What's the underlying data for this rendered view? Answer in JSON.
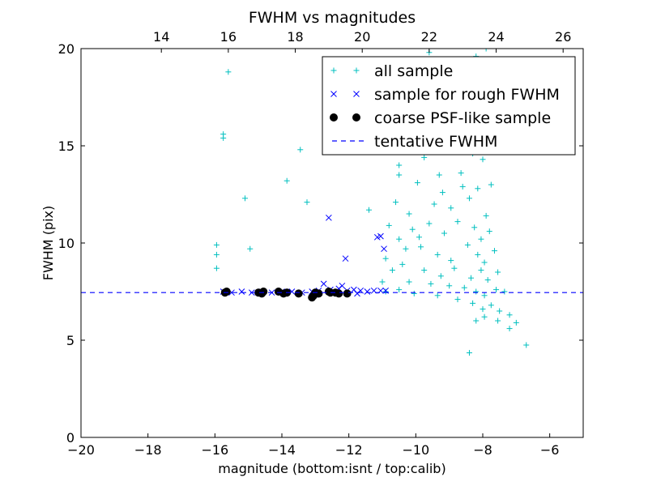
{
  "chart_data": {
    "type": "scatter",
    "title": "FWHM vs magnitudes",
    "xlabel": "magnitude (bottom:isnt / top:calib)",
    "ylabel": "FWHM (pix)",
    "xlim": [
      -20,
      -5
    ],
    "ylim": [
      0,
      20
    ],
    "xticks": [
      "−20",
      "−18",
      "−16",
      "−14",
      "−12",
      "−10",
      "−8",
      "−6"
    ],
    "xtick_values": [
      -20,
      -18,
      -16,
      -14,
      -12,
      -10,
      -8,
      -6
    ],
    "yticks": [
      "0",
      "5",
      "10",
      "15",
      "20"
    ],
    "ytick_values": [
      0,
      5,
      10,
      15,
      20
    ],
    "top_axis": {
      "offset": 31.6,
      "ticks": [
        "14",
        "16",
        "18",
        "20",
        "22",
        "24",
        "26"
      ],
      "tick_values": [
        14,
        16,
        18,
        20,
        22,
        24,
        26
      ]
    },
    "grid": false,
    "legend_position": "upper-right",
    "series": [
      {
        "name": "all sample",
        "marker": "+",
        "color": "#00bfbf",
        "points": [
          [
            -15.6,
            18.8
          ],
          [
            -15.75,
            15.6
          ],
          [
            -15.75,
            15.4
          ],
          [
            -15.1,
            12.3
          ],
          [
            -15.95,
            9.9
          ],
          [
            -15.95,
            9.4
          ],
          [
            -15.95,
            8.7
          ],
          [
            -14.95,
            9.7
          ],
          [
            -13.85,
            13.2
          ],
          [
            -13.45,
            14.8
          ],
          [
            -13.25,
            12.1
          ],
          [
            -11.4,
            11.7
          ],
          [
            -10.5,
            14.0
          ],
          [
            -10.5,
            13.5
          ],
          [
            -10.6,
            12.1
          ],
          [
            -10.2,
            11.5
          ],
          [
            -10.8,
            10.9
          ],
          [
            -10.5,
            10.2
          ],
          [
            -10.9,
            9.2
          ],
          [
            -10.3,
            9.7
          ],
          [
            -9.6,
            19.8
          ],
          [
            -9.3,
            19.3
          ],
          [
            -8.2,
            19.6
          ],
          [
            -7.9,
            20.0
          ],
          [
            -9.05,
            18.8
          ],
          [
            -9.3,
            17.8
          ],
          [
            -8.45,
            18.4
          ],
          [
            -8.05,
            17.9
          ],
          [
            -8.85,
            17.1
          ],
          [
            -8.1,
            16.5
          ],
          [
            -9.55,
            16.2
          ],
          [
            -8.55,
            15.2
          ],
          [
            -7.85,
            15.5
          ],
          [
            -9.95,
            15.0
          ],
          [
            -9.75,
            14.4
          ],
          [
            -8.0,
            14.3
          ],
          [
            -9.3,
            13.5
          ],
          [
            -8.65,
            13.6
          ],
          [
            -7.75,
            13.0
          ],
          [
            -9.95,
            13.1
          ],
          [
            -9.2,
            12.6
          ],
          [
            -9.45,
            12.0
          ],
          [
            -8.95,
            11.8
          ],
          [
            -8.4,
            12.3
          ],
          [
            -8.15,
            12.8
          ],
          [
            -7.9,
            11.4
          ],
          [
            -9.6,
            11.0
          ],
          [
            -10.1,
            10.7
          ],
          [
            -9.15,
            10.5
          ],
          [
            -8.75,
            11.1
          ],
          [
            -8.25,
            10.8
          ],
          [
            -8.05,
            10.2
          ],
          [
            -7.8,
            10.6
          ],
          [
            -9.85,
            9.8
          ],
          [
            -9.35,
            9.4
          ],
          [
            -8.95,
            9.1
          ],
          [
            -8.45,
            9.9
          ],
          [
            -8.15,
            9.4
          ],
          [
            -7.95,
            9.0
          ],
          [
            -7.65,
            9.6
          ],
          [
            -9.75,
            8.6
          ],
          [
            -9.25,
            8.3
          ],
          [
            -8.85,
            8.7
          ],
          [
            -8.35,
            8.2
          ],
          [
            -8.05,
            8.6
          ],
          [
            -7.85,
            8.1
          ],
          [
            -7.55,
            8.5
          ],
          [
            -10.2,
            8.0
          ],
          [
            -9.55,
            7.9
          ],
          [
            -9.0,
            7.8
          ],
          [
            -8.55,
            7.7
          ],
          [
            -8.2,
            7.5
          ],
          [
            -7.95,
            7.3
          ],
          [
            -7.6,
            7.6
          ],
          [
            -7.35,
            7.5
          ],
          [
            -10.5,
            7.6
          ],
          [
            -10.9,
            7.5
          ],
          [
            -10.05,
            7.4
          ],
          [
            -9.35,
            7.3
          ],
          [
            -8.75,
            7.1
          ],
          [
            -8.3,
            6.9
          ],
          [
            -8.0,
            6.6
          ],
          [
            -7.75,
            6.8
          ],
          [
            -7.5,
            6.5
          ],
          [
            -7.95,
            6.2
          ],
          [
            -8.2,
            6.0
          ],
          [
            -7.55,
            6.0
          ],
          [
            -7.2,
            6.3
          ],
          [
            -7.2,
            5.6
          ],
          [
            -7.0,
            5.9
          ],
          [
            -8.4,
            4.35
          ],
          [
            -6.7,
            4.75
          ],
          [
            -11.0,
            8.0
          ],
          [
            -10.7,
            8.6
          ],
          [
            -10.4,
            8.9
          ],
          [
            -9.9,
            10.3
          ],
          [
            -8.6,
            12.9
          ],
          [
            -8.3,
            14.6
          ],
          [
            -8.7,
            16.0
          ],
          [
            -7.85,
            16.8
          ]
        ]
      },
      {
        "name": "sample for rough FWHM",
        "marker": "x",
        "color": "#0000ff",
        "points": [
          [
            -15.75,
            7.5
          ],
          [
            -15.5,
            7.45
          ],
          [
            -15.2,
            7.5
          ],
          [
            -14.9,
            7.45
          ],
          [
            -14.6,
            7.5
          ],
          [
            -14.3,
            7.45
          ],
          [
            -14.0,
            7.5
          ],
          [
            -13.7,
            7.5
          ],
          [
            -13.4,
            7.45
          ],
          [
            -13.1,
            7.5
          ],
          [
            -12.9,
            7.55
          ],
          [
            -12.75,
            7.9
          ],
          [
            -12.55,
            7.6
          ],
          [
            -12.3,
            7.65
          ],
          [
            -12.2,
            7.8
          ],
          [
            -12.05,
            7.55
          ],
          [
            -11.85,
            7.6
          ],
          [
            -11.65,
            7.55
          ],
          [
            -11.45,
            7.5
          ],
          [
            -11.25,
            7.55
          ],
          [
            -11.05,
            7.55
          ],
          [
            -10.9,
            7.55
          ],
          [
            -12.6,
            11.3
          ],
          [
            -12.1,
            9.2
          ],
          [
            -11.15,
            10.3
          ],
          [
            -11.05,
            10.35
          ],
          [
            -10.95,
            9.7
          ],
          [
            -13.0,
            7.35
          ],
          [
            -12.45,
            7.45
          ],
          [
            -11.75,
            7.4
          ]
        ]
      },
      {
        "name": "coarse PSF-like sample",
        "marker": "o",
        "color": "#000000",
        "points": [
          [
            -15.7,
            7.45
          ],
          [
            -15.65,
            7.5
          ],
          [
            -14.7,
            7.45
          ],
          [
            -14.6,
            7.4
          ],
          [
            -14.55,
            7.5
          ],
          [
            -14.1,
            7.5
          ],
          [
            -13.95,
            7.4
          ],
          [
            -13.85,
            7.45
          ],
          [
            -13.5,
            7.4
          ],
          [
            -13.05,
            7.3
          ],
          [
            -13.0,
            7.45
          ],
          [
            -12.9,
            7.4
          ],
          [
            -12.6,
            7.5
          ],
          [
            -12.4,
            7.45
          ],
          [
            -12.3,
            7.4
          ],
          [
            -12.05,
            7.4
          ],
          [
            -13.1,
            7.2
          ],
          [
            -12.55,
            7.45
          ]
        ]
      },
      {
        "name": "tentative FWHM",
        "type": "hline",
        "style": "dashed",
        "color": "#0000ff",
        "y": 7.45
      }
    ]
  }
}
